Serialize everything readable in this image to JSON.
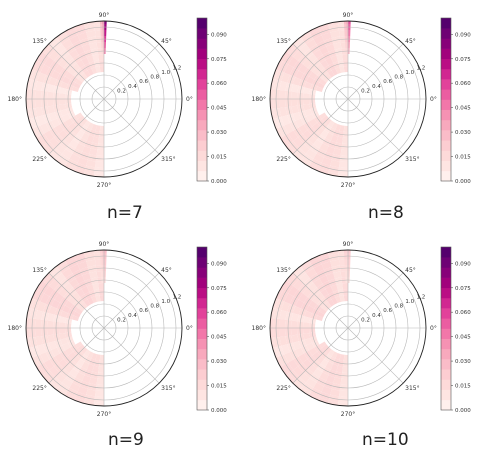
{
  "colors": {
    "cmap": [
      "#fff5f2",
      "#fde0dd",
      "#fbc6cd",
      "#f79fb8",
      "#f06aa4",
      "#dd3497",
      "#ae017e",
      "#7a0177",
      "#49006a"
    ]
  },
  "chart_data": [
    {
      "type": "heatmap",
      "subtype": "polar",
      "caption": "n=7",
      "angle_ticks": [
        "0°",
        "45°",
        "90°",
        "135°",
        "180°",
        "225°",
        "270°",
        "315°"
      ],
      "radial_ticks": [
        "0.2",
        "0.4",
        "0.6",
        "0.8",
        "1.0",
        "1.2"
      ],
      "colorbar": {
        "ticks": [
          "0.000",
          "0.015",
          "0.030",
          "0.045",
          "0.060",
          "0.075",
          "0.090"
        ],
        "range": [
          0,
          0.1
        ]
      },
      "ray_peaks": [
        0.09,
        0.04,
        0.03
      ],
      "band_levels": [
        {
          "theta_range": [
            90,
            165
          ],
          "r_range": [
            0.45,
            1.3
          ],
          "value": 0.016
        },
        {
          "theta_range": [
            165,
            205
          ],
          "r_range": [
            0.55,
            1.3
          ],
          "value": 0.012
        },
        {
          "theta_range": [
            205,
            270
          ],
          "r_range": [
            0.45,
            1.3
          ],
          "value": 0.014
        }
      ]
    },
    {
      "type": "heatmap",
      "subtype": "polar",
      "caption": "n=8",
      "angle_ticks": [
        "0°",
        "45°",
        "90°",
        "135°",
        "180°",
        "225°",
        "270°",
        "315°"
      ],
      "radial_ticks": [
        "0.2",
        "0.4",
        "0.6",
        "0.8",
        "1.0",
        "1.2"
      ],
      "colorbar": {
        "ticks": [
          "0.000",
          "0.015",
          "0.030",
          "0.045",
          "0.060",
          "0.075",
          "0.090"
        ],
        "range": [
          0,
          0.1
        ]
      },
      "ray_peaks": [
        0.06,
        0.035,
        0.03
      ],
      "band_levels": [
        {
          "theta_range": [
            90,
            165
          ],
          "r_range": [
            0.45,
            1.3
          ],
          "value": 0.017
        },
        {
          "theta_range": [
            165,
            205
          ],
          "r_range": [
            0.55,
            1.3
          ],
          "value": 0.013
        },
        {
          "theta_range": [
            205,
            270
          ],
          "r_range": [
            0.45,
            1.3
          ],
          "value": 0.015
        }
      ]
    },
    {
      "type": "heatmap",
      "subtype": "polar",
      "caption": "n=9",
      "angle_ticks": [
        "0°",
        "45°",
        "90°",
        "135°",
        "180°",
        "225°",
        "270°",
        "315°"
      ],
      "radial_ticks": [
        "0.2",
        "0.4",
        "0.6",
        "0.8",
        "1.0",
        "1.2"
      ],
      "colorbar": {
        "ticks": [
          "0.000",
          "0.015",
          "0.030",
          "0.045",
          "0.060",
          "0.075",
          "0.090"
        ],
        "range": [
          0,
          0.1
        ]
      },
      "ray_peaks": [
        0.03,
        0.025,
        0.02
      ],
      "band_levels": [
        {
          "theta_range": [
            90,
            165
          ],
          "r_range": [
            0.45,
            1.3
          ],
          "value": 0.018
        },
        {
          "theta_range": [
            165,
            205
          ],
          "r_range": [
            0.55,
            1.3
          ],
          "value": 0.014
        },
        {
          "theta_range": [
            205,
            270
          ],
          "r_range": [
            0.45,
            1.3
          ],
          "value": 0.015
        }
      ]
    },
    {
      "type": "heatmap",
      "subtype": "polar",
      "caption": "n=10",
      "angle_ticks": [
        "0°",
        "45°",
        "90°",
        "135°",
        "180°",
        "225°",
        "270°",
        "315°"
      ],
      "radial_ticks": [
        "0.2",
        "0.4",
        "0.6",
        "0.8",
        "1.0",
        "1.2"
      ],
      "colorbar": {
        "ticks": [
          "0.000",
          "0.015",
          "0.030",
          "0.045",
          "0.060",
          "0.075",
          "0.090"
        ],
        "range": [
          0,
          0.1
        ]
      },
      "ray_peaks": [
        0.025,
        0.02,
        0.02
      ],
      "band_levels": [
        {
          "theta_range": [
            90,
            165
          ],
          "r_range": [
            0.45,
            1.3
          ],
          "value": 0.018
        },
        {
          "theta_range": [
            165,
            205
          ],
          "r_range": [
            0.55,
            1.3
          ],
          "value": 0.015
        },
        {
          "theta_range": [
            205,
            270
          ],
          "r_range": [
            0.45,
            1.3
          ],
          "value": 0.016
        }
      ]
    }
  ]
}
